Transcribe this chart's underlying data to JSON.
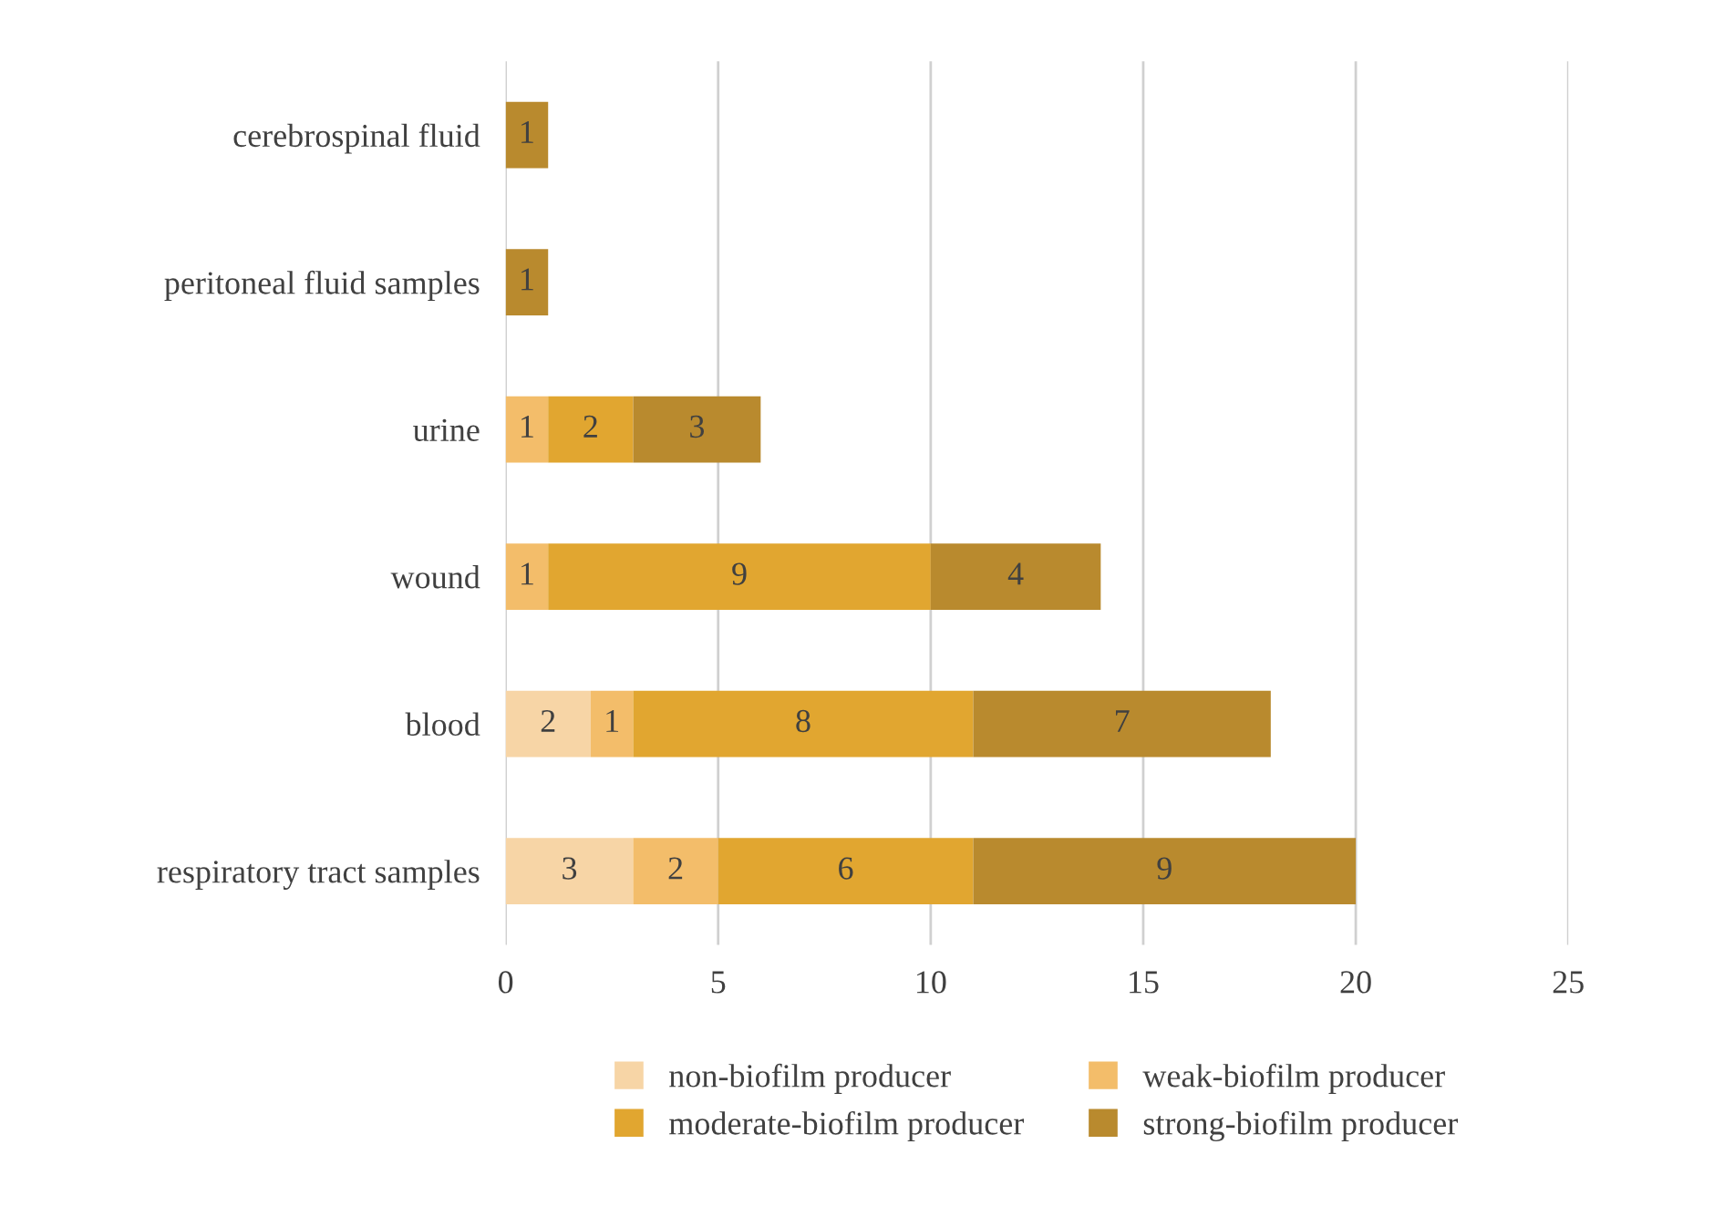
{
  "chart_data": {
    "type": "bar",
    "orientation": "horizontal",
    "stacked": true,
    "data_labels": true,
    "grid": "x",
    "legend": "bottom",
    "categories": [
      "cerebrospinal fluid",
      "peritoneal fluid samples",
      "urine",
      "wound",
      "blood",
      "respiratory tract samples"
    ],
    "series": [
      {
        "name": "non-biofilm producer",
        "color": "#f7d5a6",
        "values": [
          null,
          null,
          null,
          null,
          2,
          3
        ]
      },
      {
        "name": "weak-biofilm producer",
        "color": "#f3bd6a",
        "values": [
          null,
          null,
          1,
          1,
          1,
          2
        ]
      },
      {
        "name": "moderate-biofilm producer",
        "color": "#e1a630",
        "values": [
          null,
          null,
          2,
          9,
          8,
          6
        ]
      },
      {
        "name": "strong-biofilm producer",
        "color": "#b98a2e",
        "values": [
          1,
          1,
          3,
          4,
          7,
          9
        ]
      }
    ],
    "xlim": [
      0,
      25
    ],
    "xticks": [
      0,
      5,
      10,
      15,
      20,
      25
    ]
  }
}
